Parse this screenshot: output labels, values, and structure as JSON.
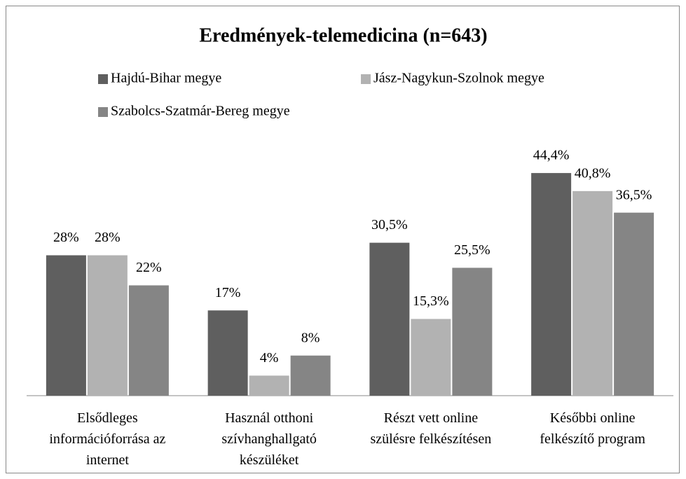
{
  "chart_data": {
    "type": "bar",
    "title": "Eredmények-telemedicina (n=643)",
    "categories": [
      "Elsődleges\ninformációforrása az\ninternet",
      "Használ otthoni\nszívhanghallgató\nkészüléket",
      "Részt vett online\nszülésre felkészítésen",
      "Későbbi online\nfelkészítő program"
    ],
    "series": [
      {
        "name": "Hajdú-Bihar megye",
        "color": "#5f5f5f",
        "values": [
          28,
          17,
          30.5,
          44.4
        ],
        "value_labels": [
          "28%",
          "17%",
          "30,5%",
          "44,4%"
        ]
      },
      {
        "name": "Jász-Nagykun-Szolnok megye",
        "color": "#b2b2b2",
        "values": [
          28,
          4,
          15.3,
          40.8
        ],
        "value_labels": [
          "28%",
          "4%",
          "15,3%",
          "40,8%"
        ]
      },
      {
        "name": "Szabolcs-Szatmár-Bereg megye",
        "color": "#858585",
        "values": [
          22,
          8,
          25.5,
          36.5
        ],
        "value_labels": [
          "22%",
          "8%",
          "25,5%",
          "36,5%"
        ]
      }
    ],
    "ylim": [
      0,
      50
    ],
    "legend": "top"
  }
}
